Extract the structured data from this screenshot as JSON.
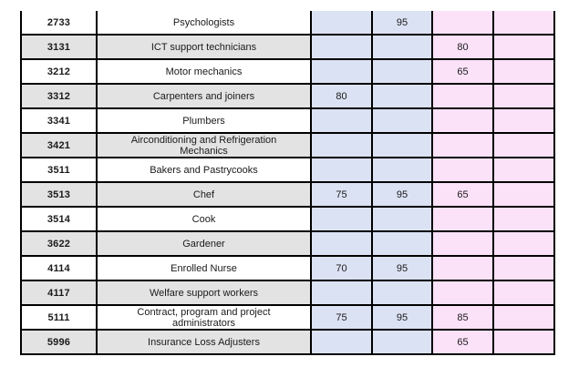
{
  "table": {
    "description": "Occupation points table fragment",
    "border_color": "#000000",
    "alt_row_fill": "#e3e3e3",
    "column_fills": [
      "",
      "",
      "#dbe2f3",
      "#dbe2f3",
      "#fce2f9",
      "#fce2f9"
    ],
    "rows": [
      {
        "code": "2733",
        "occupation": "Psychologists",
        "values": [
          "",
          "95",
          "",
          ""
        ]
      },
      {
        "code": "3131",
        "occupation": "ICT support technicians",
        "values": [
          "",
          "",
          "80",
          ""
        ]
      },
      {
        "code": "3212",
        "occupation": "Motor mechanics",
        "values": [
          "",
          "",
          "65",
          ""
        ]
      },
      {
        "code": "3312",
        "occupation": "Carpenters and joiners",
        "values": [
          "80",
          "",
          "",
          ""
        ]
      },
      {
        "code": "3341",
        "occupation": "Plumbers",
        "values": [
          "",
          "",
          "",
          ""
        ]
      },
      {
        "code": "3421",
        "occupation": "Airconditioning and Refrigeration Mechanics",
        "values": [
          "",
          "",
          "",
          ""
        ]
      },
      {
        "code": "3511",
        "occupation": "Bakers and Pastrycooks",
        "values": [
          "",
          "",
          "",
          ""
        ]
      },
      {
        "code": "3513",
        "occupation": "Chef",
        "values": [
          "75",
          "95",
          "65",
          ""
        ]
      },
      {
        "code": "3514",
        "occupation": "Cook",
        "values": [
          "",
          "",
          "",
          ""
        ]
      },
      {
        "code": "3622",
        "occupation": "Gardener",
        "values": [
          "",
          "",
          "",
          ""
        ]
      },
      {
        "code": "4114",
        "occupation": "Enrolled Nurse",
        "values": [
          "70",
          "95",
          "",
          ""
        ]
      },
      {
        "code": "4117",
        "occupation": "Welfare support workers",
        "values": [
          "",
          "",
          "",
          ""
        ]
      },
      {
        "code": "5111",
        "occupation": "Contract, program and project administrators",
        "values": [
          "75",
          "95",
          "85",
          ""
        ]
      },
      {
        "code": "5996",
        "occupation": "Insurance Loss Adjusters",
        "values": [
          "",
          "",
          "65",
          ""
        ]
      }
    ]
  }
}
